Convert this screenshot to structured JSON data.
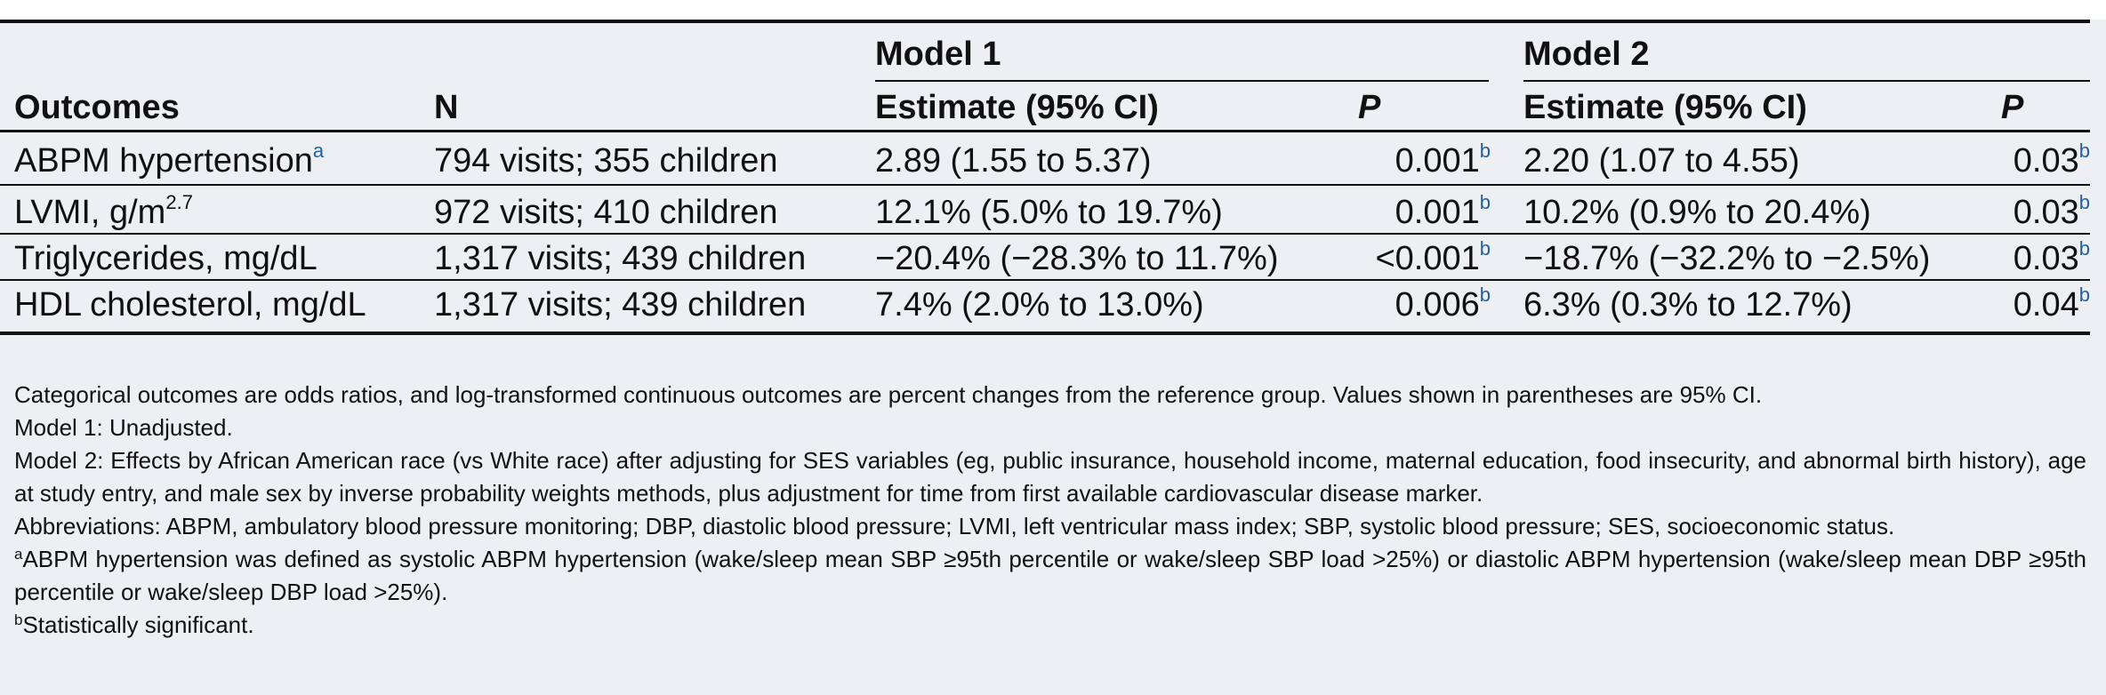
{
  "table": {
    "header": {
      "outcomes": "Outcomes",
      "n": "N",
      "model1": "Model 1",
      "model2": "Model 2",
      "estimate1": "Estimate (95% CI)",
      "p1": "P",
      "estimate2": "Estimate (95% CI)",
      "p2": "P"
    },
    "rows": [
      {
        "outcome": "ABPM hypertension",
        "outcome_sup": "a",
        "n": "794 visits; 355 children",
        "est1": "2.89 (1.55 to 5.37)",
        "p1": "0.001",
        "p1_sup": "b",
        "est2": "2.20 (1.07 to 4.55)",
        "p2": "0.03",
        "p2_sup": "b"
      },
      {
        "outcome": "LVMI, g/m",
        "outcome_sup": "2.7",
        "n": "972 visits; 410 children",
        "est1": "12.1% (5.0% to 19.7%)",
        "p1": "0.001",
        "p1_sup": "b",
        "est2": "10.2% (0.9% to 20.4%)",
        "p2": "0.03",
        "p2_sup": "b"
      },
      {
        "outcome": "Triglycerides, mg/dL",
        "outcome_sup": "",
        "n": "1,317 visits; 439 children",
        "est1": "−20.4% (−28.3% to 11.7%)",
        "p1": "<0.001",
        "p1_sup": "b",
        "est2": "−18.7% (−32.2% to −2.5%)",
        "p2": "0.03",
        "p2_sup": "b"
      },
      {
        "outcome": "HDL cholesterol, mg/dL",
        "outcome_sup": "",
        "n": "1,317 visits; 439 children",
        "est1": "7.4% (2.0% to 13.0%)",
        "p1": "0.006",
        "p1_sup": "b",
        "est2": "6.3% (0.3% to 12.7%)",
        "p2": "0.04",
        "p2_sup": "b"
      }
    ]
  },
  "notes": {
    "n1": "Categorical outcomes are odds ratios, and log-transformed continuous outcomes are percent changes from the reference group. Values shown in parentheses are 95% CI.",
    "n2": "Model 1: Unadjusted.",
    "n3": "Model 2: Effects by African American race (vs White race) after adjusting for SES variables (eg, public insurance, household income, maternal education, food insecurity, and abnormal birth history), age at study entry, and male sex by inverse probability weights methods, plus adjustment for time from first available cardiovascular disease marker.",
    "n4": "Abbreviations: ABPM, ambulatory blood pressure monitoring; DBP, diastolic blood pressure; LVMI, left ventricular mass index; SBP, systolic blood pressure; SES, socioeconomic status.",
    "fa_mark": "a",
    "fa_text": "ABPM hypertension was defined as systolic ABPM hypertension (wake/sleep mean SBP ≥95th percentile or wake/sleep SBP load >25%) or diastolic ABPM hypertension (wake/sleep mean DBP ≥95th percentile or wake/sleep DBP load >25%).",
    "fb_mark": "b",
    "fb_text": "Statistically significant."
  },
  "colors": {
    "panel": "#edeff2",
    "rule": "#111111",
    "footnote_link": "#1f5fa6"
  }
}
